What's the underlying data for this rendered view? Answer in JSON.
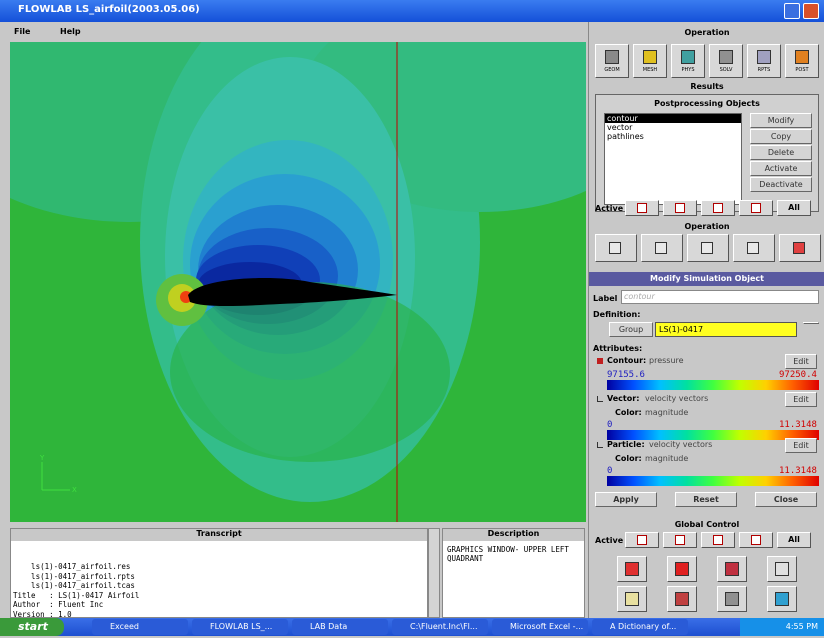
{
  "window": {
    "title": "FLOWLAB  LS_airfoil(2003.05.06)"
  },
  "menu": [
    "File",
    "Help"
  ],
  "graphics": {
    "axis_y": "Y",
    "axis_x": "X"
  },
  "transcript": {
    "title": "Transcript",
    "lines": [
      "    ls(1)-0417_airfoil.res",
      "    ls(1)-0417_airfoil.rpts",
      "    ls(1)-0417_airfoil.tcas",
      "Title   : LS(1)-0417 Airfoil",
      "Author  : Fluent Inc",
      "Version : 1.0"
    ]
  },
  "description": {
    "title": "Description",
    "lines": [
      "GRAPHICS WINDOW- UPPER LEFT",
      "QUADRANT"
    ]
  },
  "operation": {
    "title": "Operation",
    "tools": [
      "GEOM",
      "MESH",
      "PHYS",
      "SOLV",
      "RPTS",
      "POST"
    ]
  },
  "results": {
    "title": "Results",
    "subtitle": "Postprocessing Objects",
    "items": [
      "contour",
      "vector",
      "pathlines"
    ],
    "buttons": [
      "Modify",
      "Copy",
      "Delete",
      "Activate",
      "Deactivate"
    ],
    "active": "Active",
    "all": "All"
  },
  "operation2": {
    "title": "Operation"
  },
  "modify": {
    "title": "Modify Simulation Object",
    "label": "Label",
    "label_value": "contour",
    "definition": "Definition:",
    "group": "Group",
    "group_value": "LS(1)-0417",
    "attributes": "Attributes:",
    "contour": {
      "name": "Contour:",
      "value": "pressure",
      "edit": "Edit",
      "min": "97155.6",
      "max": "97250.4"
    },
    "vector": {
      "name": "Vector:",
      "value": "velocity vectors",
      "edit": "Edit",
      "color": "Color:",
      "color_value": "magnitude",
      "min": "0",
      "max": "11.3148"
    },
    "particle": {
      "name": "Particle:",
      "value": "velocity vectors",
      "edit": "Edit",
      "color": "Color:",
      "color_value": "magnitude",
      "min": "0",
      "max": "11.3148"
    },
    "buttons": [
      "Apply",
      "Reset",
      "Close"
    ]
  },
  "global": {
    "title": "Global Control",
    "active": "Active",
    "all": "All"
  },
  "taskbar": {
    "start": "start",
    "tasks": [
      "Exceed",
      "FLOWLAB  LS_...",
      "LAB Data",
      "C:\\Fluent.Inc\\Fl...",
      "Microsoft Excel -...",
      "A Dictionary of..."
    ],
    "clock": "4:55 PM"
  }
}
